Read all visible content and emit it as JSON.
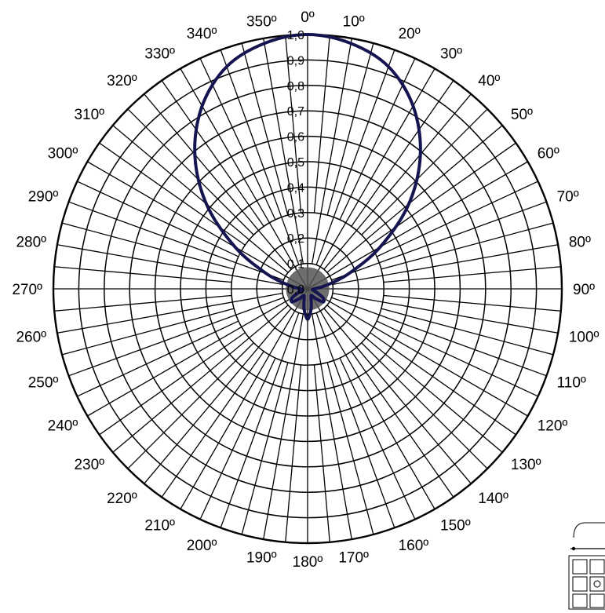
{
  "chart_data": {
    "type": "polar-line",
    "title": "",
    "angular_axis": {
      "zero_direction": "top",
      "direction": "clockwise",
      "tick_labels": [
        "0º",
        "10º",
        "20º",
        "30º",
        "40º",
        "50º",
        "60º",
        "70º",
        "80º",
        "90º",
        "100º",
        "110º",
        "120º",
        "130º",
        "140º",
        "150º",
        "160º",
        "170º",
        "180º",
        "190º",
        "200º",
        "210º",
        "220º",
        "230º",
        "240º",
        "250º",
        "260º",
        "270º",
        "280º",
        "290º",
        "300º",
        "310º",
        "320º",
        "330º",
        "340º",
        "350º"
      ]
    },
    "radial_axis": {
      "range": [
        0,
        1.0
      ],
      "tick_labels": [
        "0,0",
        "0,1",
        "0,2",
        "0,3",
        "0,4",
        "0,5",
        "0,6",
        "0,7",
        "0,8",
        "0,9",
        "1,0"
      ]
    },
    "grid": true,
    "series": [
      {
        "color": "#141450",
        "angles": [
          0,
          10,
          20,
          30,
          40,
          50,
          60,
          70,
          80,
          90,
          100,
          110,
          120,
          130,
          140,
          150,
          160,
          170,
          180,
          190,
          200,
          210,
          220,
          230,
          240,
          250,
          260,
          270,
          280,
          290,
          300,
          310,
          320,
          330,
          340,
          350
        ],
        "r": [
          1.0,
          0.98,
          0.93,
          0.83,
          0.69,
          0.52,
          0.33,
          0.17,
          0.07,
          0.025,
          0.02,
          0.035,
          0.07,
          0.08,
          0.05,
          0.03,
          0.04,
          0.08,
          0.12,
          0.08,
          0.04,
          0.03,
          0.05,
          0.08,
          0.07,
          0.035,
          0.02,
          0.025,
          0.07,
          0.17,
          0.33,
          0.52,
          0.69,
          0.83,
          0.93,
          0.98
        ]
      }
    ]
  },
  "fill_color": "#555555",
  "grid_color": "#000000"
}
